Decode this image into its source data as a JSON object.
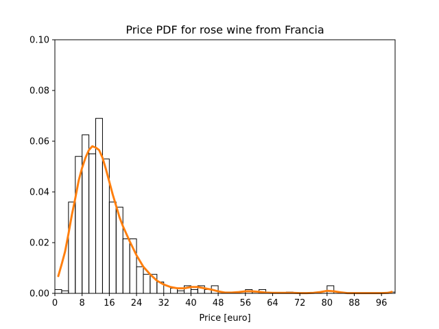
{
  "chart_data": {
    "type": "bar",
    "title": "Price PDF for rose wine from Francia",
    "xlabel": "Price [euro]",
    "ylabel": "",
    "xlim": [
      0,
      100
    ],
    "ylim": [
      0,
      0.1
    ],
    "xticks": [
      0,
      8,
      16,
      24,
      32,
      40,
      48,
      56,
      64,
      72,
      80,
      88,
      96
    ],
    "yticks": [
      "0.00",
      "0.02",
      "0.04",
      "0.06",
      "0.08",
      "0.10"
    ],
    "grid": false,
    "histogram": {
      "bin_edges": [
        0,
        2,
        4,
        6,
        8,
        10,
        12,
        14,
        16,
        18,
        20,
        22,
        24,
        26,
        28,
        30,
        32,
        34,
        36,
        38,
        40,
        42,
        44,
        46,
        48,
        50,
        52,
        54,
        56,
        58,
        60,
        62,
        64,
        66,
        68,
        70,
        72,
        74,
        76,
        78,
        80,
        82,
        84,
        86,
        88,
        90,
        92,
        94,
        96,
        98,
        100
      ],
      "density": [
        0.0015,
        0.001,
        0.036,
        0.054,
        0.0625,
        0.055,
        0.069,
        0.053,
        0.036,
        0.034,
        0.0215,
        0.0215,
        0.0105,
        0.0075,
        0.0075,
        0.0045,
        0.0,
        0.002,
        0.001,
        0.003,
        0.0015,
        0.003,
        0.0015,
        0.003,
        0.0,
        0.0,
        0.0,
        0.0,
        0.0015,
        0.0005,
        0.0015,
        0.0,
        0.0,
        0.0,
        0.0005,
        0.0,
        0.0,
        0.0,
        0.0,
        0.0,
        0.003,
        0.0,
        0.0,
        0.0,
        0.0,
        0.0,
        0.0,
        0.0,
        0.0,
        0.0005
      ],
      "color": "#000000"
    },
    "kde": {
      "x": [
        1,
        2,
        3,
        4,
        5,
        6,
        7,
        8,
        9,
        10,
        11,
        12,
        13,
        14,
        15,
        16,
        17,
        18,
        19,
        20,
        22,
        24,
        26,
        28,
        30,
        32,
        34,
        36,
        38,
        40,
        42,
        44,
        46,
        48,
        50,
        52,
        54,
        56,
        58,
        60,
        62,
        64,
        66,
        68,
        70,
        72,
        74,
        76,
        78,
        80,
        82,
        84,
        86,
        88,
        90,
        92,
        94,
        96,
        98,
        99
      ],
      "y": [
        0.0068,
        0.0115,
        0.0165,
        0.0235,
        0.031,
        0.0375,
        0.0445,
        0.0495,
        0.0535,
        0.0565,
        0.058,
        0.0575,
        0.0565,
        0.0535,
        0.049,
        0.044,
        0.039,
        0.0345,
        0.03,
        0.0265,
        0.0205,
        0.015,
        0.0105,
        0.0075,
        0.005,
        0.0035,
        0.0025,
        0.002,
        0.002,
        0.0025,
        0.0025,
        0.002,
        0.0015,
        0.0008,
        0.0003,
        0.0003,
        0.0005,
        0.0008,
        0.0008,
        0.0006,
        0.0003,
        0.0002,
        0.0002,
        0.0002,
        0.0002,
        0.0001,
        0.0001,
        0.0002,
        0.0005,
        0.001,
        0.0008,
        0.0004,
        0.0001,
        0.0001,
        0.0001,
        0.0001,
        0.0001,
        0.0001,
        0.0002,
        0.0006
      ],
      "color": "#ff7f0e"
    }
  }
}
